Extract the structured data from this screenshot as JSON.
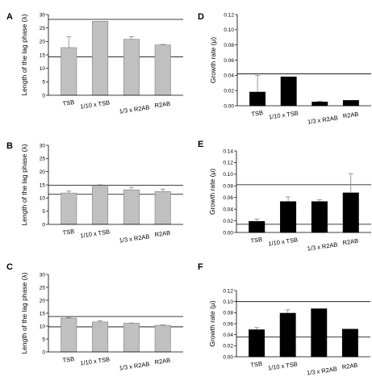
{
  "chart_data": [
    {
      "panel": "A",
      "type": "bar",
      "bar_color": "#c0c0c0",
      "ylabel": "Length of the lag phase (λ)",
      "ylim": [
        0,
        30
      ],
      "yticks": [
        0,
        5,
        10,
        15,
        20,
        25,
        30
      ],
      "categories": [
        "TSB",
        "1/10 x TSB",
        "1/3 x R2AB",
        "R2AB"
      ],
      "values": [
        17.7,
        27.5,
        20.8,
        18.7
      ],
      "errors": [
        4.0,
        0.0,
        1.0,
        0.2
      ],
      "reference_lines": [
        28.2,
        14.3
      ]
    },
    {
      "panel": "B",
      "type": "bar",
      "bar_color": "#c0c0c0",
      "ylabel": "Length of the lag phase (λ)",
      "ylim": [
        0,
        30
      ],
      "yticks": [
        0,
        5,
        10,
        15,
        20,
        25,
        30
      ],
      "categories": [
        "TSB",
        "1/10 x TSB",
        "1/3 x R2AB",
        "R2AB"
      ],
      "values": [
        11.9,
        14.4,
        13.1,
        12.5
      ],
      "errors": [
        0.7,
        0.6,
        1.0,
        0.9
      ],
      "reference_lines": [
        14.8,
        11.4
      ]
    },
    {
      "panel": "C",
      "type": "bar",
      "bar_color": "#c0c0c0",
      "ylabel": "Length of the lag phase (λ)",
      "ylim": [
        0,
        30
      ],
      "yticks": [
        0,
        5,
        10,
        15,
        20,
        25,
        30
      ],
      "categories": [
        "TSB",
        "1/10 x TSB",
        "1/3 x R2AB",
        "R2AB"
      ],
      "values": [
        13.1,
        11.6,
        11.1,
        10.3
      ],
      "errors": [
        0.2,
        0.4,
        0.1,
        0.2
      ],
      "reference_lines": [
        13.7,
        9.7
      ]
    },
    {
      "panel": "D",
      "type": "bar",
      "bar_color": "#000000",
      "ylabel": "Growth rate (μ)",
      "ylim": [
        0,
        0.12
      ],
      "yticks": [
        0,
        0.02,
        0.04,
        0.06,
        0.08,
        0.1,
        0.12
      ],
      "ytick_labels": [
        "0.00",
        "0.02",
        "0.04",
        "0.06",
        "0.08",
        "0.10",
        "0.12"
      ],
      "categories": [
        "TSB",
        "1/10 x TSB",
        "1/3 x R2AB",
        "R2AB"
      ],
      "values": [
        0.018,
        0.038,
        0.005,
        0.007
      ],
      "errors": [
        0.022,
        0.0,
        0.001,
        0.0
      ],
      "reference_lines": [
        0.042
      ]
    },
    {
      "panel": "E",
      "type": "bar",
      "bar_color": "#000000",
      "ylabel": "Growth rate (μ)",
      "ylim": [
        0,
        0.14
      ],
      "yticks": [
        0,
        0.02,
        0.04,
        0.06,
        0.08,
        0.1,
        0.12,
        0.14
      ],
      "ytick_labels": [
        "0.00",
        "0.02",
        "0.04",
        "0.06",
        "0.08",
        "0.10",
        "0.12",
        "0.14"
      ],
      "categories": [
        "TSB",
        "1/10 x TSB",
        "1/3 x R2AB",
        "R2AB"
      ],
      "values": [
        0.019,
        0.053,
        0.053,
        0.068
      ],
      "errors": [
        0.004,
        0.008,
        0.003,
        0.033
      ],
      "reference_lines": [
        0.082,
        0.014
      ]
    },
    {
      "panel": "F",
      "type": "bar",
      "bar_color": "#000000",
      "ylabel": "Growth rate (μ)",
      "ylim": [
        0,
        0.12
      ],
      "yticks": [
        0,
        0.02,
        0.04,
        0.06,
        0.08,
        0.1,
        0.12
      ],
      "ytick_labels": [
        "0.00",
        "0.02",
        "0.04",
        "0.06",
        "0.08",
        "0.10",
        "0.12"
      ],
      "categories": [
        "TSB",
        "1/10 x TSB",
        "1/3 x R2AB",
        "R2AB"
      ],
      "values": [
        0.049,
        0.079,
        0.087,
        0.05
      ],
      "errors": [
        0.004,
        0.006,
        0.0,
        0.0
      ],
      "reference_lines": [
        0.1,
        0.036
      ]
    }
  ]
}
